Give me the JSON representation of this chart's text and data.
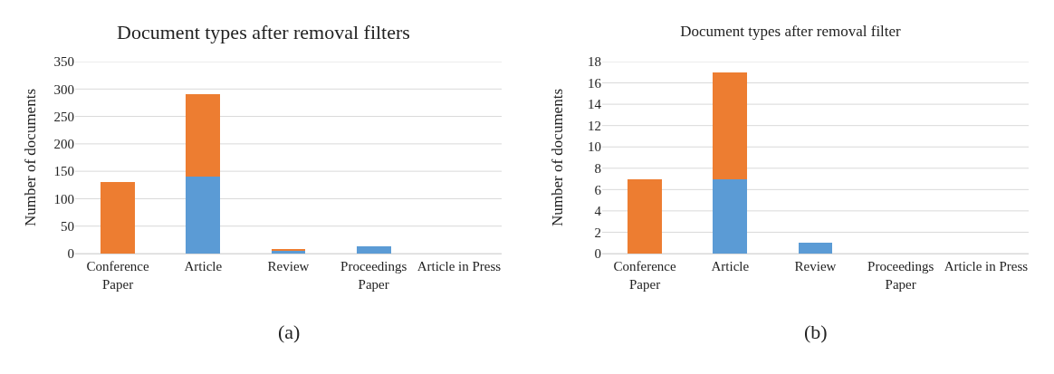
{
  "chart_data": [
    {
      "type": "bar",
      "title": "Document types after removal filters",
      "ylabel": "Number of documents",
      "categories": [
        "Conference\nPaper",
        "Article",
        "Review",
        "Proceedings\nPaper",
        "Article in Press"
      ],
      "stacked": true,
      "grid": "y",
      "ylim": [
        0,
        350
      ],
      "yticks": [
        0,
        50,
        100,
        150,
        200,
        250,
        300,
        350
      ],
      "annotations": [
        "(a)"
      ],
      "series": [
        {
          "color": "#5b9bd5",
          "values": [
            0,
            140,
            5,
            14,
            0
          ]
        },
        {
          "color": "#ed7d31",
          "values": [
            130,
            150,
            4,
            0,
            0
          ]
        }
      ]
    },
    {
      "type": "bar",
      "title": "Document types after removal filter",
      "ylabel": "Number of documents",
      "categories": [
        "Conference\nPaper",
        "Article",
        "Review",
        "Proceedings\nPaper",
        "Article in Press"
      ],
      "stacked": true,
      "grid": "y",
      "ylim": [
        0,
        18
      ],
      "yticks": [
        0,
        2,
        4,
        6,
        8,
        10,
        12,
        14,
        16,
        18
      ],
      "annotations": [
        "(b)"
      ],
      "series": [
        {
          "color": "#5b9bd5",
          "values": [
            0,
            7,
            1,
            0,
            0
          ]
        },
        {
          "color": "#ed7d31",
          "values": [
            7,
            10,
            0,
            0,
            0
          ]
        }
      ]
    }
  ]
}
